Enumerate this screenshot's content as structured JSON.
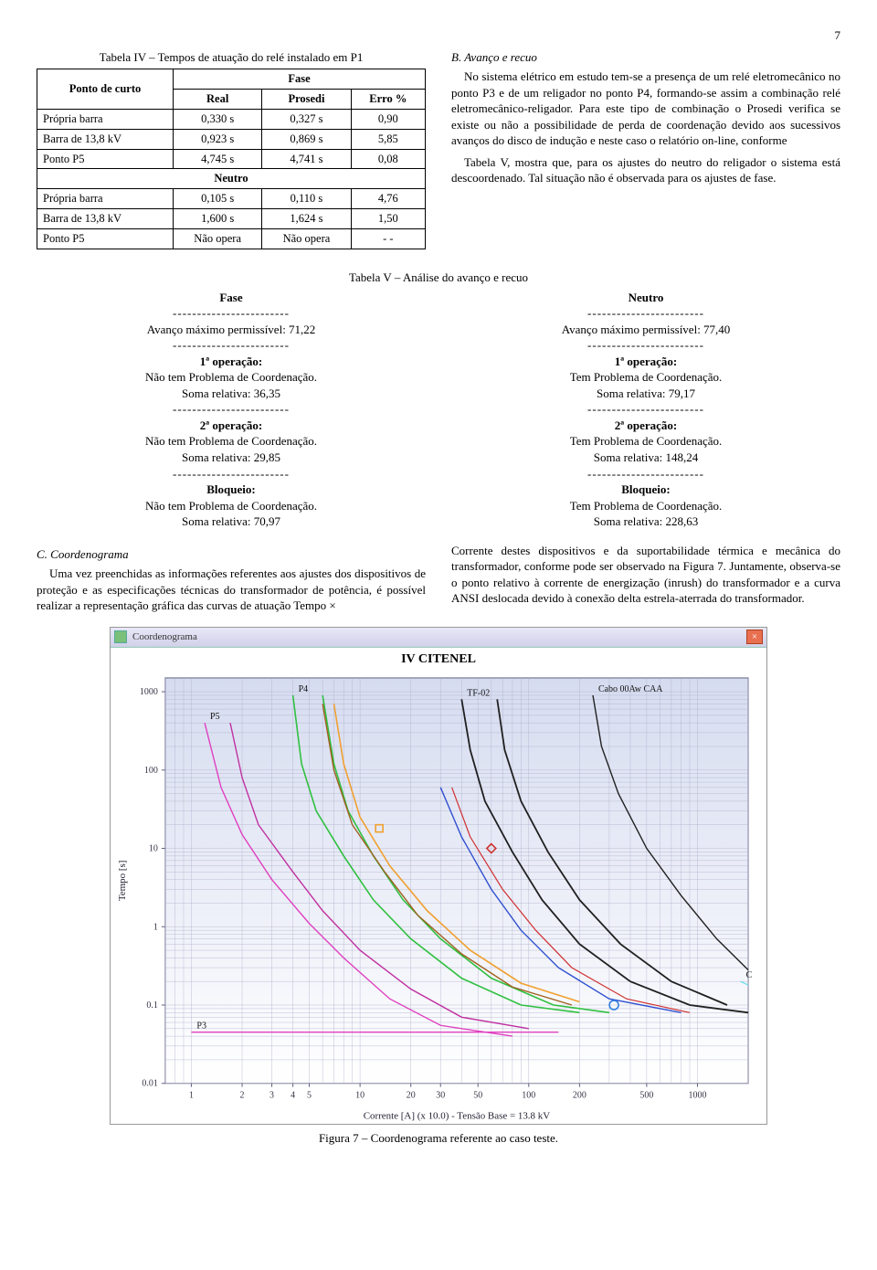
{
  "page_number": "7",
  "table4": {
    "caption": "Tabela IV – Tempos de atuação do relé instalado em P1",
    "row_header": "Ponto de curto",
    "phase_header": "Fase",
    "cols": [
      "Real",
      "Prosedi",
      "Erro %"
    ],
    "phase_rows": [
      [
        "Própria barra",
        "0,330 s",
        "0,327 s",
        "0,90"
      ],
      [
        "Barra de 13,8 kV",
        "0,923 s",
        "0,869 s",
        "5,85"
      ],
      [
        "Ponto P5",
        "4,745 s",
        "4,741 s",
        "0,08"
      ]
    ],
    "neutral_header": "Neutro",
    "neutral_rows": [
      [
        "Própria barra",
        "0,105 s",
        "0,110 s",
        "4,76"
      ],
      [
        "Barra de 13,8 kV",
        "1,600 s",
        "1,624 s",
        "1,50"
      ],
      [
        "Ponto P5",
        "Não opera",
        "Não opera",
        "- -"
      ]
    ]
  },
  "sectionB": {
    "title": "B.  Avanço e recuo",
    "p1": "No sistema elétrico em estudo tem-se a presença de um relé eletromecânico no ponto P3 e de um religador no ponto P4, formando-se assim a combinação relé eletromecânico-religador. Para este tipo de combinação o Prosedi verifica se existe ou não a possibilidade de perda de coordenação devido aos sucessivos avanços do disco de indução e neste caso o relatório on-line, conforme",
    "p2": "Tabela V, mostra que, para os ajustes do neutro do religador o sistema está descoordenado. Tal situação não é observada para os ajustes de fase."
  },
  "table5": {
    "caption": "Tabela V – Análise do avanço e recuo",
    "sep": "------------------------",
    "fase": {
      "hdr": "Fase",
      "max": "Avanço máximo permissível: 71,22",
      "op1_t": "1ª operação:",
      "op1_l": "Não tem Problema de Coordenação.",
      "op1_s": "Soma relativa: 36,35",
      "op2_t": "2ª operação:",
      "op2_l": "Não tem Problema de Coordenação.",
      "op2_s": "Soma relativa: 29,85",
      "blk_t": "Bloqueio:",
      "blk_l": "Não tem Problema de Coordenação.",
      "blk_s": "Soma relativa: 70,97"
    },
    "neutro": {
      "hdr": "Neutro",
      "max": "Avanço máximo permissível: 77,40",
      "op1_t": "1ª operação:",
      "op1_l": "Tem Problema de Coordenação.",
      "op1_s": "Soma relativa: 79,17",
      "op2_t": "2ª operação:",
      "op2_l": "Tem Problema de Coordenação.",
      "op2_s": "Soma relativa: 148,24",
      "blk_t": "Bloqueio:",
      "blk_l": "Tem Problema de Coordenação.",
      "blk_s": "Soma relativa: 228,63"
    }
  },
  "sectionC": {
    "title": "C.  Coordenograma",
    "p1": "Uma vez preenchidas as informações referentes aos ajustes dos dispositivos de proteção e as especificações técnicas do transformador de potência, é possível realizar a representação gráfica das curvas de atuação Tempo ×",
    "p2": "Corrente destes dispositivos e da suportabilidade térmica e mecânica do transformador, conforme pode ser observado na Figura 7. Juntamente, observa-se o ponto relativo à corrente de energização (inrush) do transformador e a curva ANSI deslocada devido à conexão delta estrela-aterrada do transformador."
  },
  "chart": {
    "window_title": "Coordenograma",
    "inner_title": "IV CITENEL",
    "xlabel": "Corrente [A] (x 10.0) - Tensão Base = 13.8 kV",
    "ylabel": "Tempo [s]",
    "xlim": [
      0.7,
      2000
    ],
    "ylim": [
      0.01,
      1500
    ],
    "xticks": [
      1,
      2,
      3,
      4,
      5,
      10,
      20,
      30,
      50,
      100,
      200,
      500,
      1000
    ],
    "yticks": [
      0.01,
      0.1,
      1,
      10,
      100,
      1000
    ],
    "bg_top": "#d6dcf0",
    "bg_bottom": "#ffffff",
    "grid_color": "#b0b0cc",
    "axis_color": "#606080",
    "series": [
      {
        "name": "P3",
        "label": "P3",
        "color": "#e040c0",
        "width": 1.4,
        "pts": [
          [
            1,
            0.045
          ],
          [
            2,
            0.045
          ],
          [
            4,
            0.045
          ],
          [
            30,
            0.045
          ],
          [
            150,
            0.045
          ]
        ]
      },
      {
        "name": "P5a",
        "label": "P5",
        "color": "#e040c0",
        "width": 1.4,
        "pts": [
          [
            1.2,
            400
          ],
          [
            1.5,
            60
          ],
          [
            2,
            15
          ],
          [
            3,
            4
          ],
          [
            5,
            1.1
          ],
          [
            8,
            0.4
          ],
          [
            15,
            0.12
          ],
          [
            30,
            0.055
          ],
          [
            80,
            0.04
          ]
        ]
      },
      {
        "name": "P5b",
        "color": "#c030a0",
        "width": 1.4,
        "pts": [
          [
            1.7,
            400
          ],
          [
            2,
            80
          ],
          [
            2.5,
            20
          ],
          [
            4,
            5
          ],
          [
            6,
            1.6
          ],
          [
            10,
            0.5
          ],
          [
            20,
            0.16
          ],
          [
            40,
            0.07
          ],
          [
            100,
            0.05
          ]
        ]
      },
      {
        "name": "P4a",
        "label": "P4",
        "color": "#30c040",
        "width": 1.6,
        "pts": [
          [
            4,
            900
          ],
          [
            4.5,
            120
          ],
          [
            5.5,
            30
          ],
          [
            8,
            8
          ],
          [
            12,
            2.2
          ],
          [
            20,
            0.7
          ],
          [
            40,
            0.22
          ],
          [
            90,
            0.1
          ],
          [
            200,
            0.08
          ]
        ]
      },
      {
        "name": "P4b",
        "color": "#30c040",
        "width": 1.6,
        "pts": [
          [
            6,
            900
          ],
          [
            7,
            120
          ],
          [
            8.5,
            30
          ],
          [
            12,
            8
          ],
          [
            18,
            2.2
          ],
          [
            30,
            0.7
          ],
          [
            60,
            0.22
          ],
          [
            140,
            0.1
          ],
          [
            300,
            0.08
          ]
        ]
      },
      {
        "name": "brown1",
        "color": "#a06020",
        "width": 1.4,
        "pts": [
          [
            6,
            700
          ],
          [
            7,
            100
          ],
          [
            9,
            20
          ],
          [
            14,
            5
          ],
          [
            22,
            1.4
          ],
          [
            40,
            0.45
          ],
          [
            80,
            0.17
          ],
          [
            180,
            0.1
          ]
        ]
      },
      {
        "name": "orange1",
        "color": "#f0a030",
        "width": 1.6,
        "pts": [
          [
            7,
            700
          ],
          [
            8,
            120
          ],
          [
            10,
            25
          ],
          [
            15,
            6
          ],
          [
            25,
            1.6
          ],
          [
            45,
            0.5
          ],
          [
            90,
            0.19
          ],
          [
            200,
            0.11
          ]
        ]
      },
      {
        "name": "blue1",
        "color": "#3050d0",
        "width": 1.4,
        "pts": [
          [
            30,
            60
          ],
          [
            40,
            14
          ],
          [
            60,
            3
          ],
          [
            90,
            0.9
          ],
          [
            150,
            0.3
          ],
          [
            300,
            0.12
          ],
          [
            800,
            0.08
          ]
        ]
      },
      {
        "name": "red1",
        "color": "#d03030",
        "width": 1.2,
        "pts": [
          [
            35,
            60
          ],
          [
            45,
            14
          ],
          [
            70,
            3
          ],
          [
            110,
            0.9
          ],
          [
            180,
            0.3
          ],
          [
            380,
            0.12
          ],
          [
            900,
            0.08
          ]
        ]
      },
      {
        "name": "TF-02",
        "label": "TF-02",
        "color": "#202020",
        "width": 1.8,
        "pts": [
          [
            40,
            800
          ],
          [
            45,
            180
          ],
          [
            55,
            40
          ],
          [
            80,
            9
          ],
          [
            120,
            2.2
          ],
          [
            200,
            0.6
          ],
          [
            400,
            0.2
          ],
          [
            900,
            0.1
          ],
          [
            2000,
            0.08
          ]
        ]
      },
      {
        "name": "black2",
        "color": "#202020",
        "width": 1.8,
        "pts": [
          [
            65,
            800
          ],
          [
            72,
            180
          ],
          [
            90,
            40
          ],
          [
            130,
            9
          ],
          [
            200,
            2.2
          ],
          [
            350,
            0.6
          ],
          [
            700,
            0.2
          ],
          [
            1500,
            0.1
          ]
        ]
      },
      {
        "name": "cabo",
        "label": "Cabo 00Aw CAA",
        "color": "#202020",
        "width": 1.4,
        "pts": [
          [
            240,
            900
          ],
          [
            270,
            200
          ],
          [
            340,
            50
          ],
          [
            500,
            10
          ],
          [
            800,
            2.5
          ],
          [
            1300,
            0.7
          ],
          [
            2000,
            0.28
          ]
        ]
      },
      {
        "name": "lightblue",
        "label": "C",
        "color": "#60e0e8",
        "width": 1.2,
        "pts": [
          [
            1800,
            0.2
          ],
          [
            2000,
            0.18
          ]
        ]
      }
    ],
    "markers": [
      {
        "x": 13,
        "y": 18,
        "sym": "square",
        "color": "#f0a030"
      },
      {
        "x": 60,
        "y": 10,
        "sym": "diamond",
        "color": "#d03030"
      },
      {
        "x": 320,
        "y": 0.1,
        "sym": "circle",
        "color": "#3080e0"
      }
    ],
    "caption": "Figura 7 – Coordenograma referente ao caso teste."
  }
}
